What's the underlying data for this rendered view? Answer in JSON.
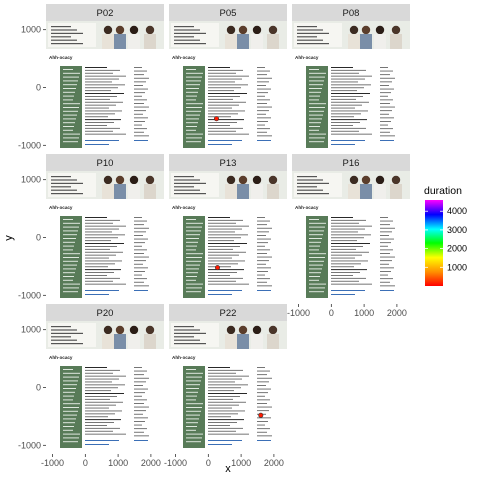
{
  "chart_data": {
    "type": "scatter",
    "xlabel": "x",
    "ylabel": "y",
    "xlim": [
      -1200,
      2400
    ],
    "ylim": [
      -1150,
      1150
    ],
    "x_ticks": [
      -1000,
      0,
      1000,
      2000
    ],
    "y_ticks": [
      -1000,
      0,
      1000
    ],
    "x_tick_labels": [
      "-1000",
      "0",
      "1000",
      "2000"
    ],
    "y_tick_labels": [
      "-1000",
      "0",
      "1000"
    ],
    "color_scale": {
      "name": "duration",
      "min": 0,
      "max": 4600,
      "ticks": [
        1000,
        2000,
        3000,
        4000
      ],
      "tick_labels": [
        "1000",
        "2000",
        "3000",
        "4000"
      ],
      "colors": [
        "#ff0000",
        "#ff8c00",
        "#ffff00",
        "#00ff00",
        "#00ffff",
        "#0000ff",
        "#ff00ff"
      ]
    },
    "panels": [
      {
        "id": "P02",
        "points": []
      },
      {
        "id": "P05",
        "points": [
          {
            "x": 250,
            "y": -540,
            "duration": 150
          }
        ]
      },
      {
        "id": "P08",
        "points": []
      },
      {
        "id": "P10",
        "points": []
      },
      {
        "id": "P13",
        "points": [
          {
            "x": 280,
            "y": -520,
            "duration": 150
          }
        ]
      },
      {
        "id": "P16",
        "points": []
      },
      {
        "id": "P20",
        "points": []
      },
      {
        "id": "P22",
        "points": [
          {
            "x": 1600,
            "y": -480,
            "duration": 150
          }
        ]
      }
    ]
  },
  "stimulus": {
    "logo_text": "Ahh·ocacy",
    "sidebar_color": "#587b58",
    "link_color": "#3b6fb6"
  }
}
